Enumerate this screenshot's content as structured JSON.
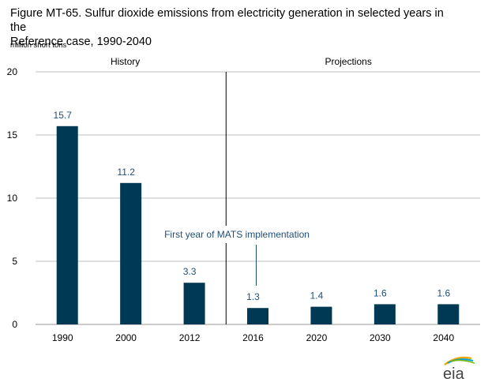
{
  "figure": {
    "title_line1": "Figure MT-65. Sulfur dioxide emissions from electricity generation in  selected years in the",
    "title_line2": "Reference case, 1990-2040",
    "units": "million short tons",
    "logo_text": "eia"
  },
  "chart_data": {
    "type": "bar",
    "categories": [
      "1990",
      "2000",
      "2012",
      "2016",
      "2020",
      "2030",
      "2040"
    ],
    "values": [
      15.7,
      11.2,
      3.3,
      1.3,
      1.4,
      1.6,
      1.6
    ],
    "data_labels": [
      "15.7",
      "11.2",
      "3.3",
      "1.3",
      "1.4",
      "1.6",
      "1.6"
    ],
    "ylim": [
      0,
      20
    ],
    "yticks": [
      0,
      5,
      10,
      15,
      20
    ],
    "ylabel": "million short tons",
    "grid": true,
    "bar_color": "#003953",
    "label_color": "#1f4e79",
    "sections": [
      "History",
      "Projections"
    ],
    "annotation": "First year of MATS implementation",
    "annotation_target": "2016"
  }
}
